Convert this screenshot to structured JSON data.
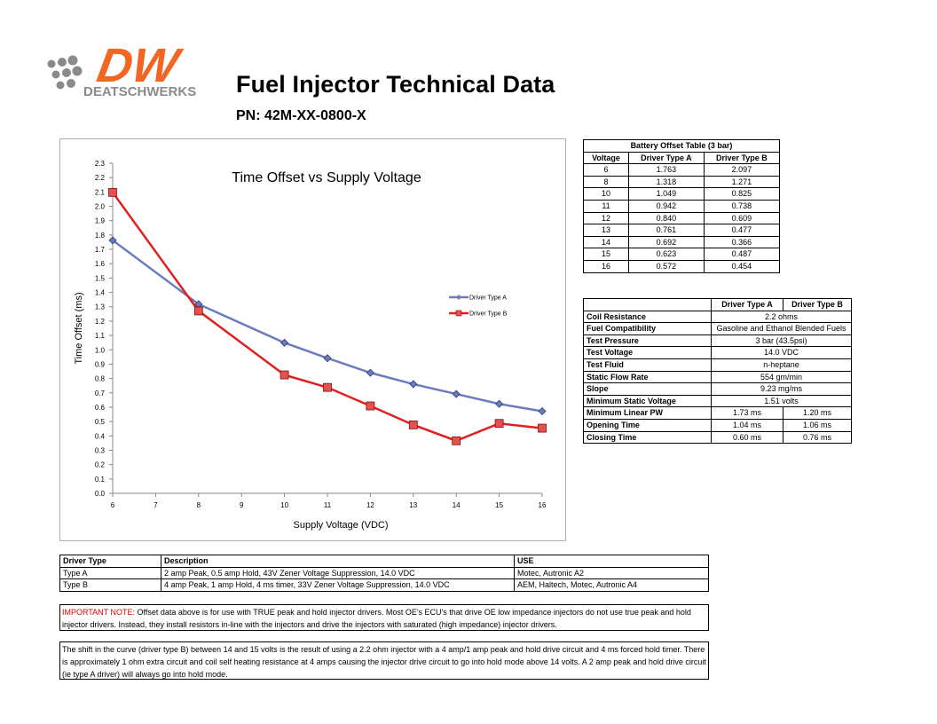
{
  "header": {
    "brand_name": "DEATSCHWERKS",
    "logo_letters": "DW",
    "title": "Fuel Injector Technical Data",
    "pn": "PN: 42M-XX-0800-X"
  },
  "colors": {
    "logo_orange": "#f26522",
    "logo_gray": "#8a8a8a",
    "series_a": "#6b7cbe",
    "series_b": "#e02020"
  },
  "chart_data": {
    "type": "line",
    "title": "Time Offset vs Supply Voltage",
    "xlabel": "Supply Voltage (VDC)",
    "ylabel": "Time Offset (ms)",
    "xlim": [
      6,
      16
    ],
    "ylim": [
      0,
      2.3
    ],
    "x_ticks": [
      "6",
      "7",
      "8",
      "9",
      "10",
      "11",
      "12",
      "13",
      "14",
      "15",
      "16"
    ],
    "y_ticks": [
      "0.0",
      "0.1",
      "0.2",
      "0.3",
      "0.4",
      "0.5",
      "0.6",
      "0.7",
      "0.8",
      "0.9",
      "1.0",
      "1.1",
      "1.2",
      "1.3",
      "1.4",
      "1.5",
      "1.6",
      "1.7",
      "1.8",
      "1.9",
      "2.0",
      "2.1",
      "2.2",
      "2.3"
    ],
    "grid": false,
    "legend_position": "right",
    "x": [
      6,
      8,
      10,
      11,
      12,
      13,
      14,
      15,
      16
    ],
    "series": [
      {
        "name": "Driver Type A",
        "color": "#6b7cbe",
        "marker": "diamond",
        "values": [
          1.763,
          1.318,
          1.049,
          0.942,
          0.84,
          0.761,
          0.692,
          0.623,
          0.572
        ]
      },
      {
        "name": "Driver Type B",
        "color": "#e02020",
        "marker": "square",
        "values": [
          2.097,
          1.271,
          0.825,
          0.738,
          0.609,
          0.477,
          0.366,
          0.487,
          0.454
        ]
      }
    ]
  },
  "battery_table": {
    "caption": "Battery Offset Table (3 bar)",
    "headers": [
      "Voltage",
      "Driver Type A",
      "Driver Type B"
    ],
    "rows": [
      [
        "6",
        "1.763",
        "2.097"
      ],
      [
        "8",
        "1.318",
        "1.271"
      ],
      [
        "10",
        "1.049",
        "0.825"
      ],
      [
        "11",
        "0.942",
        "0.738"
      ],
      [
        "12",
        "0.840",
        "0.609"
      ],
      [
        "13",
        "0.761",
        "0.477"
      ],
      [
        "14",
        "0.692",
        "0.366"
      ],
      [
        "15",
        "0.623",
        "0.487"
      ],
      [
        "16",
        "0.572",
        "0.454"
      ]
    ]
  },
  "spec_table": {
    "headers": [
      "",
      "Driver Type A",
      "Driver Type B"
    ],
    "rows": [
      {
        "label": "Coil Resistance",
        "shared": "2.2 ohms"
      },
      {
        "label": "Fuel Compatibility",
        "shared": "Gasoline and Ethanol Blended Fuels"
      },
      {
        "label": "Test Pressure",
        "shared": "3 bar (43.5psi)"
      },
      {
        "label": "Test Voltage",
        "shared": "14.0 VDC"
      },
      {
        "label": "Test Fluid",
        "shared": "n-heptane"
      },
      {
        "label": "Static Flow Rate",
        "shared": "554 gm/min"
      },
      {
        "label": "Slope",
        "shared": "9.23 mg/ms"
      },
      {
        "label": "Minimum Static Voltage",
        "shared": "1.51 volts"
      },
      {
        "label": "Minimum Linear PW",
        "a": "1.73 ms",
        "b": "1.20 ms"
      },
      {
        "label": "Opening Time",
        "a": "1.04 ms",
        "b": "1.06 ms"
      },
      {
        "label": "Closing Time",
        "a": "0.60 ms",
        "b": "0.76 ms"
      }
    ]
  },
  "driver_table": {
    "headers": [
      "Driver Type",
      "Description",
      "USE"
    ],
    "rows": [
      [
        "Type A",
        "2 amp Peak, 0.5 amp Hold, 43V Zener Voltage Suppression, 14.0 VDC",
        "Motec, Autronic A2"
      ],
      [
        "Type B",
        "4 amp Peak, 1 amp Hold, 4 ms timer, 33V Zener Voltage Suppression, 14.0 VDC",
        "AEM, Haltech, Motec, Autronic A4"
      ]
    ]
  },
  "notes": {
    "important_label": "IMPORTANT NOTE:",
    "important_text": " Offset data above is for use with TRUE peak and hold injector drivers.  Most OE's ECU's that drive OE low impedance injectors do not use true peak and hold injector drivers.  Instead, they install resistors in-line with the injectors and drive the injectors with saturated (high impedance) injector drivers.",
    "shift_text": "The shift in the curve (driver type B) between 14 and 15 volts is the result of using a 2.2 ohm injector with a 4 amp/1 amp peak and hold drive circuit and 4 ms forced hold timer. There is approximately 1 ohm extra circuit and coil self heating resistance at 4 amps causing the injector drive circuit to go into hold mode above 14 volts. A 2 amp peak and hold drive circuit (ie type A driver) will always go into hold mode."
  }
}
